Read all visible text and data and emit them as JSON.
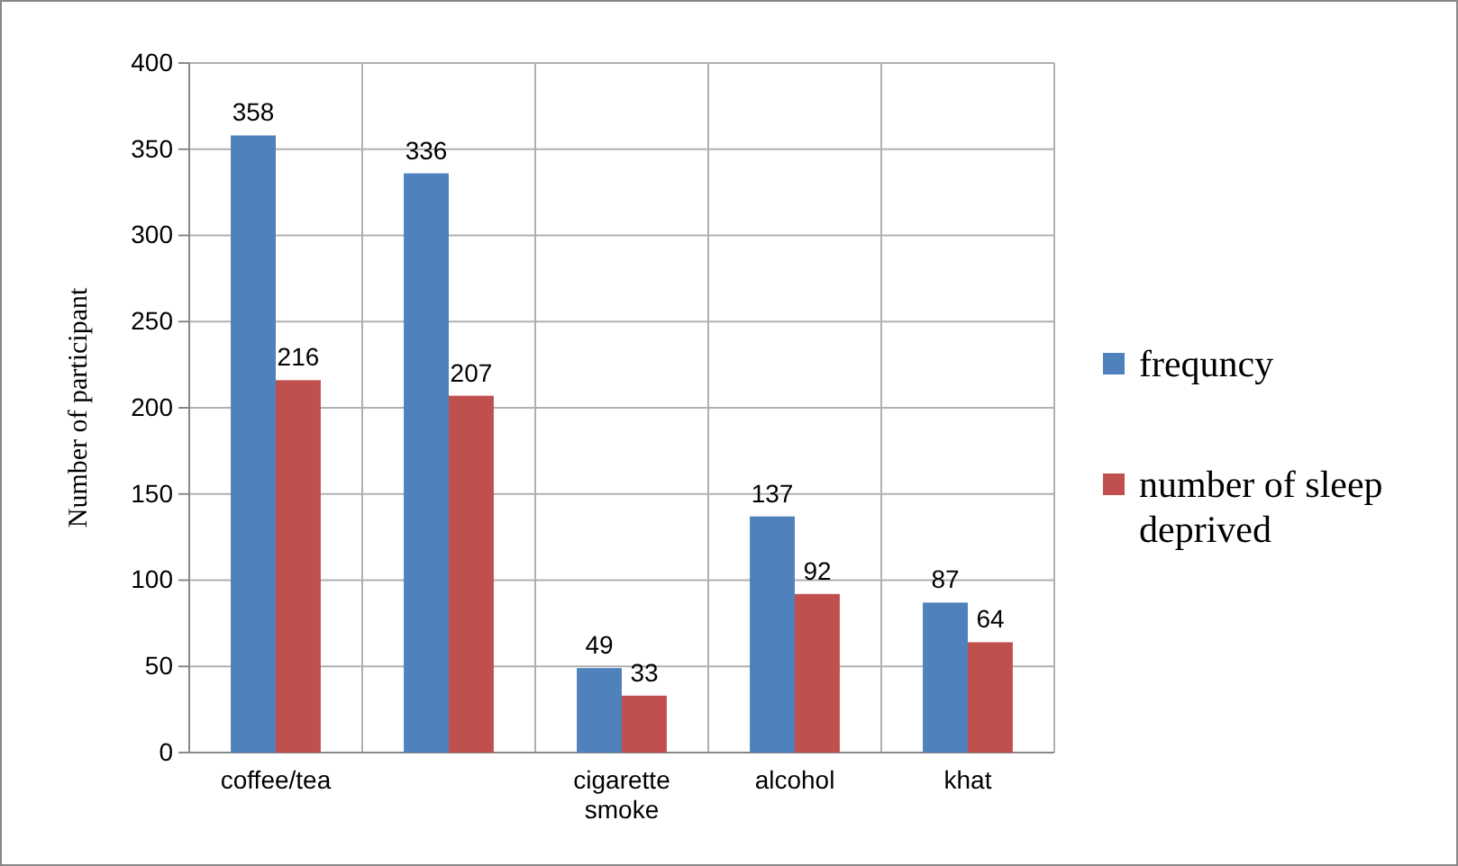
{
  "chart_data": {
    "type": "bar",
    "ylabel": "Number of participant",
    "categories": [
      "coffee/tea",
      null,
      "cigarette smoke",
      "alcohol",
      "khat"
    ],
    "series": [
      {
        "name": "frequncy",
        "color": "#4f81bd",
        "values": [
          358,
          336,
          49,
          137,
          87
        ]
      },
      {
        "name": "number of sleep deprived",
        "color": "#c0504d",
        "values": [
          216,
          207,
          33,
          92,
          64
        ]
      }
    ],
    "ylim": [
      0,
      400
    ],
    "yticks": [
      0,
      50,
      100,
      150,
      200,
      250,
      300,
      350,
      400
    ],
    "grid": true,
    "legend": "right",
    "data_labels": true
  }
}
